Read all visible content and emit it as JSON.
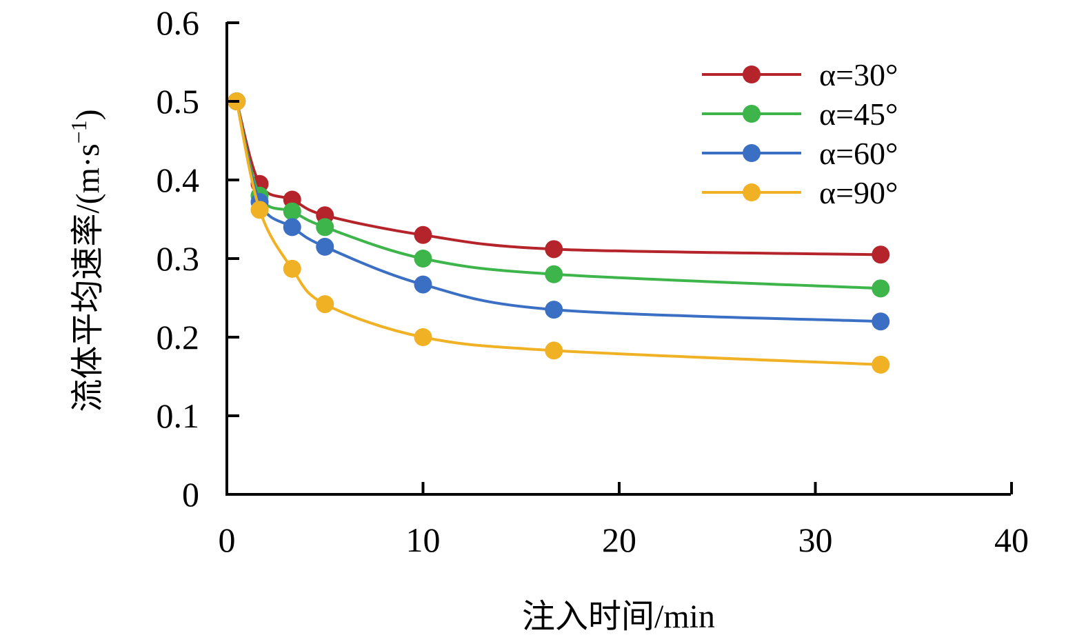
{
  "chart_data": {
    "type": "line",
    "xlabel": "注入时间/min",
    "ylabel": "流体平均速率/(m·s",
    "ylabel_superscript": "−1",
    "ylabel_close": ")",
    "xlim": [
      0,
      40
    ],
    "ylim": [
      0,
      0.6
    ],
    "xticks": [
      0,
      10,
      20,
      30,
      40
    ],
    "xtick_labels": [
      "0",
      "10",
      "20",
      "30",
      "40"
    ],
    "yticks": [
      0,
      0.1,
      0.2,
      0.3,
      0.4,
      0.5,
      0.6
    ],
    "ytick_labels": [
      "0",
      "0.1",
      "0.2",
      "0.3",
      "0.4",
      "0.5",
      "0.6"
    ],
    "grid": false,
    "legend_position": "top-right",
    "x": [
      0.5,
      1.67,
      3.33,
      5,
      10,
      16.67,
      33.33
    ],
    "series": [
      {
        "name": "α=30°",
        "color": "#b5242a",
        "values": [
          0.5,
          0.395,
          0.375,
          0.355,
          0.33,
          0.312,
          0.305
        ]
      },
      {
        "name": "α=45°",
        "color": "#3db54a",
        "values": [
          0.5,
          0.38,
          0.36,
          0.34,
          0.3,
          0.28,
          0.262
        ]
      },
      {
        "name": "α=60°",
        "color": "#3a6fc4",
        "values": [
          0.5,
          0.372,
          0.34,
          0.315,
          0.267,
          0.235,
          0.22
        ]
      },
      {
        "name": "α=90°",
        "color": "#f0b124",
        "values": [
          0.5,
          0.362,
          0.287,
          0.242,
          0.2,
          0.183,
          0.165
        ]
      }
    ]
  }
}
